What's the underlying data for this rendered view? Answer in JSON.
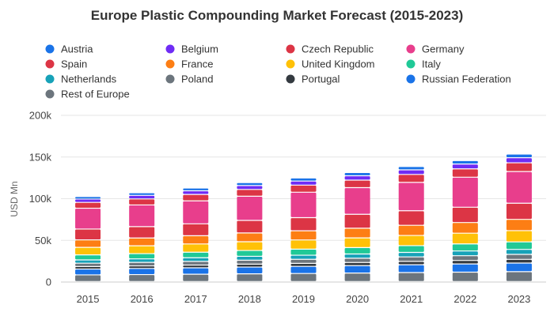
{
  "chart_data": {
    "type": "bar",
    "stacked": true,
    "title": "Europe Plastic Compounding Market Forecast (2015-2023)",
    "ylabel": "USD Mn",
    "xlabel": "",
    "ylim": [
      0,
      200000
    ],
    "yticks": [
      0,
      50000,
      100000,
      150000,
      200000
    ],
    "ytick_labels": [
      "0",
      "50k",
      "100k",
      "150k",
      "200k"
    ],
    "grid": true,
    "legend_position": "top",
    "categories": [
      "2015",
      "2016",
      "2017",
      "2018",
      "2019",
      "2020",
      "2021",
      "2022",
      "2023"
    ],
    "series": [
      {
        "name": "Rest of Europe",
        "color": "#6c757d",
        "values": [
          8000,
          8400,
          8800,
          9300,
          9700,
          10200,
          10800,
          11300,
          11900
        ]
      },
      {
        "name": "Russian Federation",
        "color": "#1a73e8",
        "values": [
          7000,
          7300,
          7700,
          8100,
          8500,
          8900,
          9400,
          9800,
          10300
        ]
      },
      {
        "name": "Portugal",
        "color": "#343a40",
        "values": [
          3000,
          3100,
          3300,
          3500,
          3600,
          3800,
          4000,
          4200,
          4400
        ]
      },
      {
        "name": "Poland",
        "color": "#6c757d",
        "values": [
          4000,
          4200,
          4400,
          4700,
          4900,
          5100,
          5400,
          5700,
          6000
        ]
      },
      {
        "name": "Netherlands",
        "color": "#17a2b8",
        "values": [
          4000,
          4200,
          4400,
          4700,
          4900,
          5100,
          5400,
          5700,
          6000
        ]
      },
      {
        "name": "Italy",
        "color": "#20c997",
        "values": [
          6000,
          6300,
          6600,
          7000,
          7300,
          7700,
          8100,
          8500,
          9000
        ]
      },
      {
        "name": "United Kingdom",
        "color": "#ffc107",
        "values": [
          9000,
          9400,
          9900,
          10500,
          11000,
          11600,
          12200,
          12800,
          13500
        ]
      },
      {
        "name": "France",
        "color": "#fd7e14",
        "values": [
          9000,
          9400,
          9900,
          10500,
          11000,
          11600,
          12200,
          12800,
          13500
        ]
      },
      {
        "name": "Spain",
        "color": "#dc3545",
        "values": [
          13000,
          13600,
          14300,
          15100,
          15800,
          16700,
          17500,
          18400,
          19400
        ]
      },
      {
        "name": "Germany",
        "color": "#e83e8c",
        "values": [
          25000,
          26000,
          27500,
          29000,
          30500,
          32000,
          34000,
          36000,
          38000
        ]
      },
      {
        "name": "Czech Republic",
        "color": "#dc3545",
        "values": [
          7000,
          7300,
          7700,
          8100,
          8500,
          9000,
          9500,
          10000,
          10500
        ]
      },
      {
        "name": "Belgium",
        "color": "#6f2cf5",
        "values": [
          4000,
          4200,
          4400,
          4700,
          4900,
          5200,
          5500,
          5800,
          6100
        ]
      },
      {
        "name": "Austria",
        "color": "#1a73e8",
        "values": [
          3000,
          3100,
          3300,
          3500,
          3700,
          3900,
          4000,
          4200,
          4400
        ]
      }
    ],
    "legend_order": [
      "Austria",
      "Belgium",
      "Czech Republic",
      "Germany",
      "Spain",
      "France",
      "United Kingdom",
      "Italy",
      "Netherlands",
      "Poland",
      "Portugal",
      "Russian Federation",
      "Rest of Europe"
    ]
  }
}
